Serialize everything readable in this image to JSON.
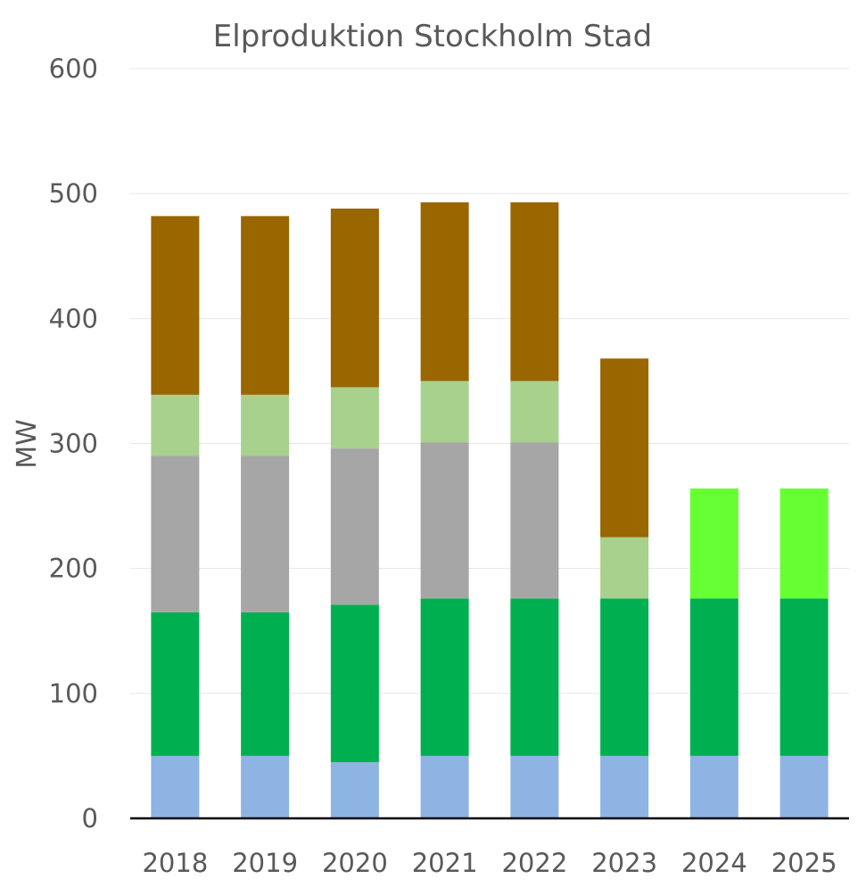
{
  "chart_data": {
    "type": "bar",
    "stacked": true,
    "title": "Elproduktion Stockholm Stad",
    "xlabel": "",
    "ylabel": "MW",
    "ylim": [
      0,
      600
    ],
    "yticks": [
      0,
      100,
      200,
      300,
      400,
      500,
      600
    ],
    "grid": true,
    "legend": "none",
    "categories": [
      "2018",
      "2019",
      "2020",
      "2021",
      "2022",
      "2023",
      "2024",
      "2025"
    ],
    "series": [
      {
        "color": "#8EB4E3",
        "values": [
          50,
          50,
          45,
          50,
          50,
          50,
          50,
          50
        ]
      },
      {
        "color": "#00B050",
        "values": [
          115,
          115,
          126,
          126,
          126,
          126,
          126,
          126
        ]
      },
      {
        "color": "#A6A6A6",
        "values": [
          125,
          125,
          125,
          125,
          125,
          0,
          0,
          0
        ]
      },
      {
        "color": "#A9D18E",
        "values": [
          49,
          49,
          49,
          49,
          49,
          49,
          0,
          0
        ]
      },
      {
        "color": "#66FF33",
        "values": [
          0,
          0,
          0,
          0,
          0,
          0,
          88,
          88
        ]
      },
      {
        "color": "#996600",
        "values": [
          143,
          143,
          143,
          143,
          143,
          143,
          0,
          0
        ]
      }
    ]
  }
}
